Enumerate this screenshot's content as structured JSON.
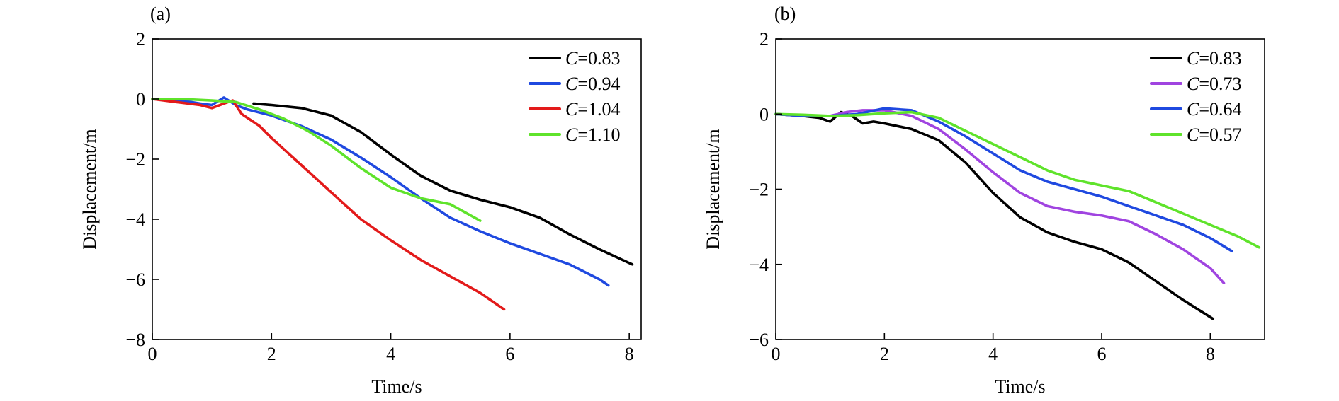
{
  "chart_data": [
    {
      "type": "line",
      "panel_label": "(a)",
      "xlabel": "Time/s",
      "ylabel": "Displacement/m",
      "xlim": [
        0,
        8.2
      ],
      "ylim": [
        -8,
        2
      ],
      "xticks": [
        0,
        2,
        4,
        6,
        8
      ],
      "yticks": [
        -8,
        -6,
        -4,
        -2,
        0,
        2
      ],
      "xtick_labels": [
        "0",
        "2",
        "4",
        "6",
        "8"
      ],
      "ytick_labels": [
        "−8",
        "−6",
        "−4",
        "−2",
        "0",
        "2"
      ],
      "grid": false,
      "legend_position": "top-right",
      "series": [
        {
          "name": "C=0.83",
          "label_var": "C",
          "label_value": "=0.83",
          "color": "#000000",
          "points": [
            [
              1.7,
              -0.15
            ],
            [
              2.0,
              -0.2
            ],
            [
              2.5,
              -0.3
            ],
            [
              3.0,
              -0.55
            ],
            [
              3.5,
              -1.1
            ],
            [
              4.0,
              -1.85
            ],
            [
              4.5,
              -2.55
            ],
            [
              5.0,
              -3.05
            ],
            [
              5.5,
              -3.35
            ],
            [
              6.0,
              -3.6
            ],
            [
              6.5,
              -3.95
            ],
            [
              7.0,
              -4.5
            ],
            [
              7.5,
              -5.0
            ],
            [
              8.05,
              -5.5
            ]
          ]
        },
        {
          "name": "C=0.94",
          "label_var": "C",
          "label_value": "=0.94",
          "color": "#1f49e0",
          "points": [
            [
              0,
              0
            ],
            [
              0.5,
              -0.05
            ],
            [
              0.8,
              -0.15
            ],
            [
              1.0,
              -0.2
            ],
            [
              1.2,
              0.05
            ],
            [
              1.4,
              -0.2
            ],
            [
              1.6,
              -0.35
            ],
            [
              2.0,
              -0.55
            ],
            [
              2.5,
              -0.9
            ],
            [
              3.0,
              -1.35
            ],
            [
              3.5,
              -1.95
            ],
            [
              4.0,
              -2.6
            ],
            [
              4.5,
              -3.3
            ],
            [
              5.0,
              -3.95
            ],
            [
              5.5,
              -4.4
            ],
            [
              6.0,
              -4.8
            ],
            [
              6.5,
              -5.15
            ],
            [
              7.0,
              -5.5
            ],
            [
              7.5,
              -6.0
            ],
            [
              7.65,
              -6.2
            ]
          ]
        },
        {
          "name": "C=1.04",
          "label_var": "C",
          "label_value": "=1.04",
          "color": "#e31a1a",
          "points": [
            [
              0,
              0
            ],
            [
              0.4,
              -0.1
            ],
            [
              0.8,
              -0.2
            ],
            [
              1.0,
              -0.3
            ],
            [
              1.2,
              -0.15
            ],
            [
              1.35,
              -0.05
            ],
            [
              1.5,
              -0.5
            ],
            [
              1.8,
              -0.9
            ],
            [
              2.0,
              -1.3
            ],
            [
              2.5,
              -2.2
            ],
            [
              3.0,
              -3.1
            ],
            [
              3.5,
              -4.0
            ],
            [
              4.0,
              -4.7
            ],
            [
              4.5,
              -5.35
            ],
            [
              5.0,
              -5.9
            ],
            [
              5.5,
              -6.45
            ],
            [
              5.9,
              -7.0
            ]
          ]
        },
        {
          "name": "C=1.10",
          "label_var": "C",
          "label_value": "=1.10",
          "color": "#5fe32b",
          "points": [
            [
              0,
              0
            ],
            [
              0.5,
              0.0
            ],
            [
              1.0,
              -0.05
            ],
            [
              1.4,
              -0.1
            ],
            [
              1.8,
              -0.35
            ],
            [
              2.2,
              -0.65
            ],
            [
              2.6,
              -1.05
            ],
            [
              3.0,
              -1.55
            ],
            [
              3.5,
              -2.3
            ],
            [
              4.0,
              -2.95
            ],
            [
              4.5,
              -3.3
            ],
            [
              5.0,
              -3.5
            ],
            [
              5.5,
              -4.05
            ]
          ]
        }
      ]
    },
    {
      "type": "line",
      "panel_label": "(b)",
      "xlabel": "Time/s",
      "ylabel": "Displacement/m",
      "xlim": [
        0,
        9
      ],
      "ylim": [
        -6,
        2
      ],
      "xticks": [
        0,
        2,
        4,
        6,
        8
      ],
      "yticks": [
        -6,
        -4,
        -2,
        0,
        2
      ],
      "xtick_labels": [
        "0",
        "2",
        "4",
        "6",
        "8"
      ],
      "ytick_labels": [
        "−6",
        "−4",
        "−2",
        "0",
        "2"
      ],
      "grid": false,
      "legend_position": "top-right",
      "series": [
        {
          "name": "C=0.83",
          "label_var": "C",
          "label_value": "=0.83",
          "color": "#000000",
          "points": [
            [
              0,
              0
            ],
            [
              0.5,
              -0.05
            ],
            [
              0.8,
              -0.1
            ],
            [
              1.0,
              -0.2
            ],
            [
              1.2,
              0.05
            ],
            [
              1.4,
              -0.05
            ],
            [
              1.6,
              -0.25
            ],
            [
              1.8,
              -0.2
            ],
            [
              2.0,
              -0.25
            ],
            [
              2.5,
              -0.4
            ],
            [
              3.0,
              -0.7
            ],
            [
              3.5,
              -1.3
            ],
            [
              4.0,
              -2.1
            ],
            [
              4.5,
              -2.75
            ],
            [
              5.0,
              -3.15
            ],
            [
              5.5,
              -3.4
            ],
            [
              6.0,
              -3.6
            ],
            [
              6.5,
              -3.95
            ],
            [
              7.0,
              -4.45
            ],
            [
              7.5,
              -4.95
            ],
            [
              8.05,
              -5.45
            ]
          ]
        },
        {
          "name": "C=0.73",
          "label_var": "C",
          "label_value": "=0.73",
          "color": "#a044e0",
          "points": [
            [
              0,
              0
            ],
            [
              0.5,
              -0.05
            ],
            [
              1.0,
              -0.05
            ],
            [
              1.3,
              0.05
            ],
            [
              1.6,
              0.1
            ],
            [
              2.0,
              0.1
            ],
            [
              2.5,
              -0.05
            ],
            [
              3.0,
              -0.4
            ],
            [
              3.5,
              -0.95
            ],
            [
              4.0,
              -1.55
            ],
            [
              4.5,
              -2.1
            ],
            [
              5.0,
              -2.45
            ],
            [
              5.5,
              -2.6
            ],
            [
              6.0,
              -2.7
            ],
            [
              6.5,
              -2.85
            ],
            [
              7.0,
              -3.2
            ],
            [
              7.5,
              -3.6
            ],
            [
              8.0,
              -4.1
            ],
            [
              8.25,
              -4.5
            ]
          ]
        },
        {
          "name": "C=0.64",
          "label_var": "C",
          "label_value": "=0.64",
          "color": "#1f49e0",
          "points": [
            [
              0,
              0
            ],
            [
              0.5,
              -0.05
            ],
            [
              1.0,
              -0.05
            ],
            [
              1.5,
              0.0
            ],
            [
              2.0,
              0.15
            ],
            [
              2.5,
              0.1
            ],
            [
              3.0,
              -0.2
            ],
            [
              3.5,
              -0.6
            ],
            [
              4.0,
              -1.05
            ],
            [
              4.5,
              -1.5
            ],
            [
              5.0,
              -1.8
            ],
            [
              5.5,
              -2.0
            ],
            [
              6.0,
              -2.2
            ],
            [
              6.5,
              -2.45
            ],
            [
              7.0,
              -2.7
            ],
            [
              7.5,
              -2.95
            ],
            [
              8.0,
              -3.3
            ],
            [
              8.4,
              -3.65
            ]
          ]
        },
        {
          "name": "C=0.57",
          "label_var": "C",
          "label_value": "=0.57",
          "color": "#5fe32b",
          "points": [
            [
              0,
              0
            ],
            [
              0.5,
              -0.02
            ],
            [
              1.0,
              -0.05
            ],
            [
              1.5,
              -0.03
            ],
            [
              2.0,
              0.02
            ],
            [
              2.5,
              0.05
            ],
            [
              3.0,
              -0.1
            ],
            [
              3.5,
              -0.45
            ],
            [
              4.0,
              -0.8
            ],
            [
              4.5,
              -1.15
            ],
            [
              5.0,
              -1.5
            ],
            [
              5.5,
              -1.75
            ],
            [
              6.0,
              -1.9
            ],
            [
              6.5,
              -2.05
            ],
            [
              7.0,
              -2.35
            ],
            [
              7.5,
              -2.65
            ],
            [
              8.0,
              -2.95
            ],
            [
              8.5,
              -3.25
            ],
            [
              8.9,
              -3.55
            ]
          ]
        }
      ]
    }
  ]
}
